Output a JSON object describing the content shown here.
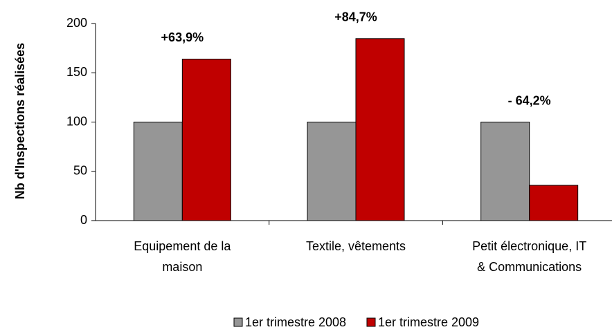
{
  "chart_data": {
    "type": "bar",
    "y_label": "Nb d'Inspections réalisées",
    "categories": [
      [
        "Equipement de la",
        "maison"
      ],
      [
        "Textile, vêtements"
      ],
      [
        "Petit électronique, IT",
        "& Communications"
      ]
    ],
    "series": [
      {
        "name": "1er trimestre 2008",
        "color": "#969696",
        "values": [
          100,
          100,
          100
        ]
      },
      {
        "name": "1er trimestre 2009",
        "color": "#c00000",
        "values": [
          163.9,
          184.7,
          35.8
        ]
      }
    ],
    "annotations": [
      "+63,9%",
      "+84,7%",
      "- 64,2%"
    ],
    "ylim": [
      0,
      200
    ],
    "yticks": [
      0,
      50,
      100,
      150,
      200
    ],
    "grid": false,
    "legend": "bottom"
  }
}
